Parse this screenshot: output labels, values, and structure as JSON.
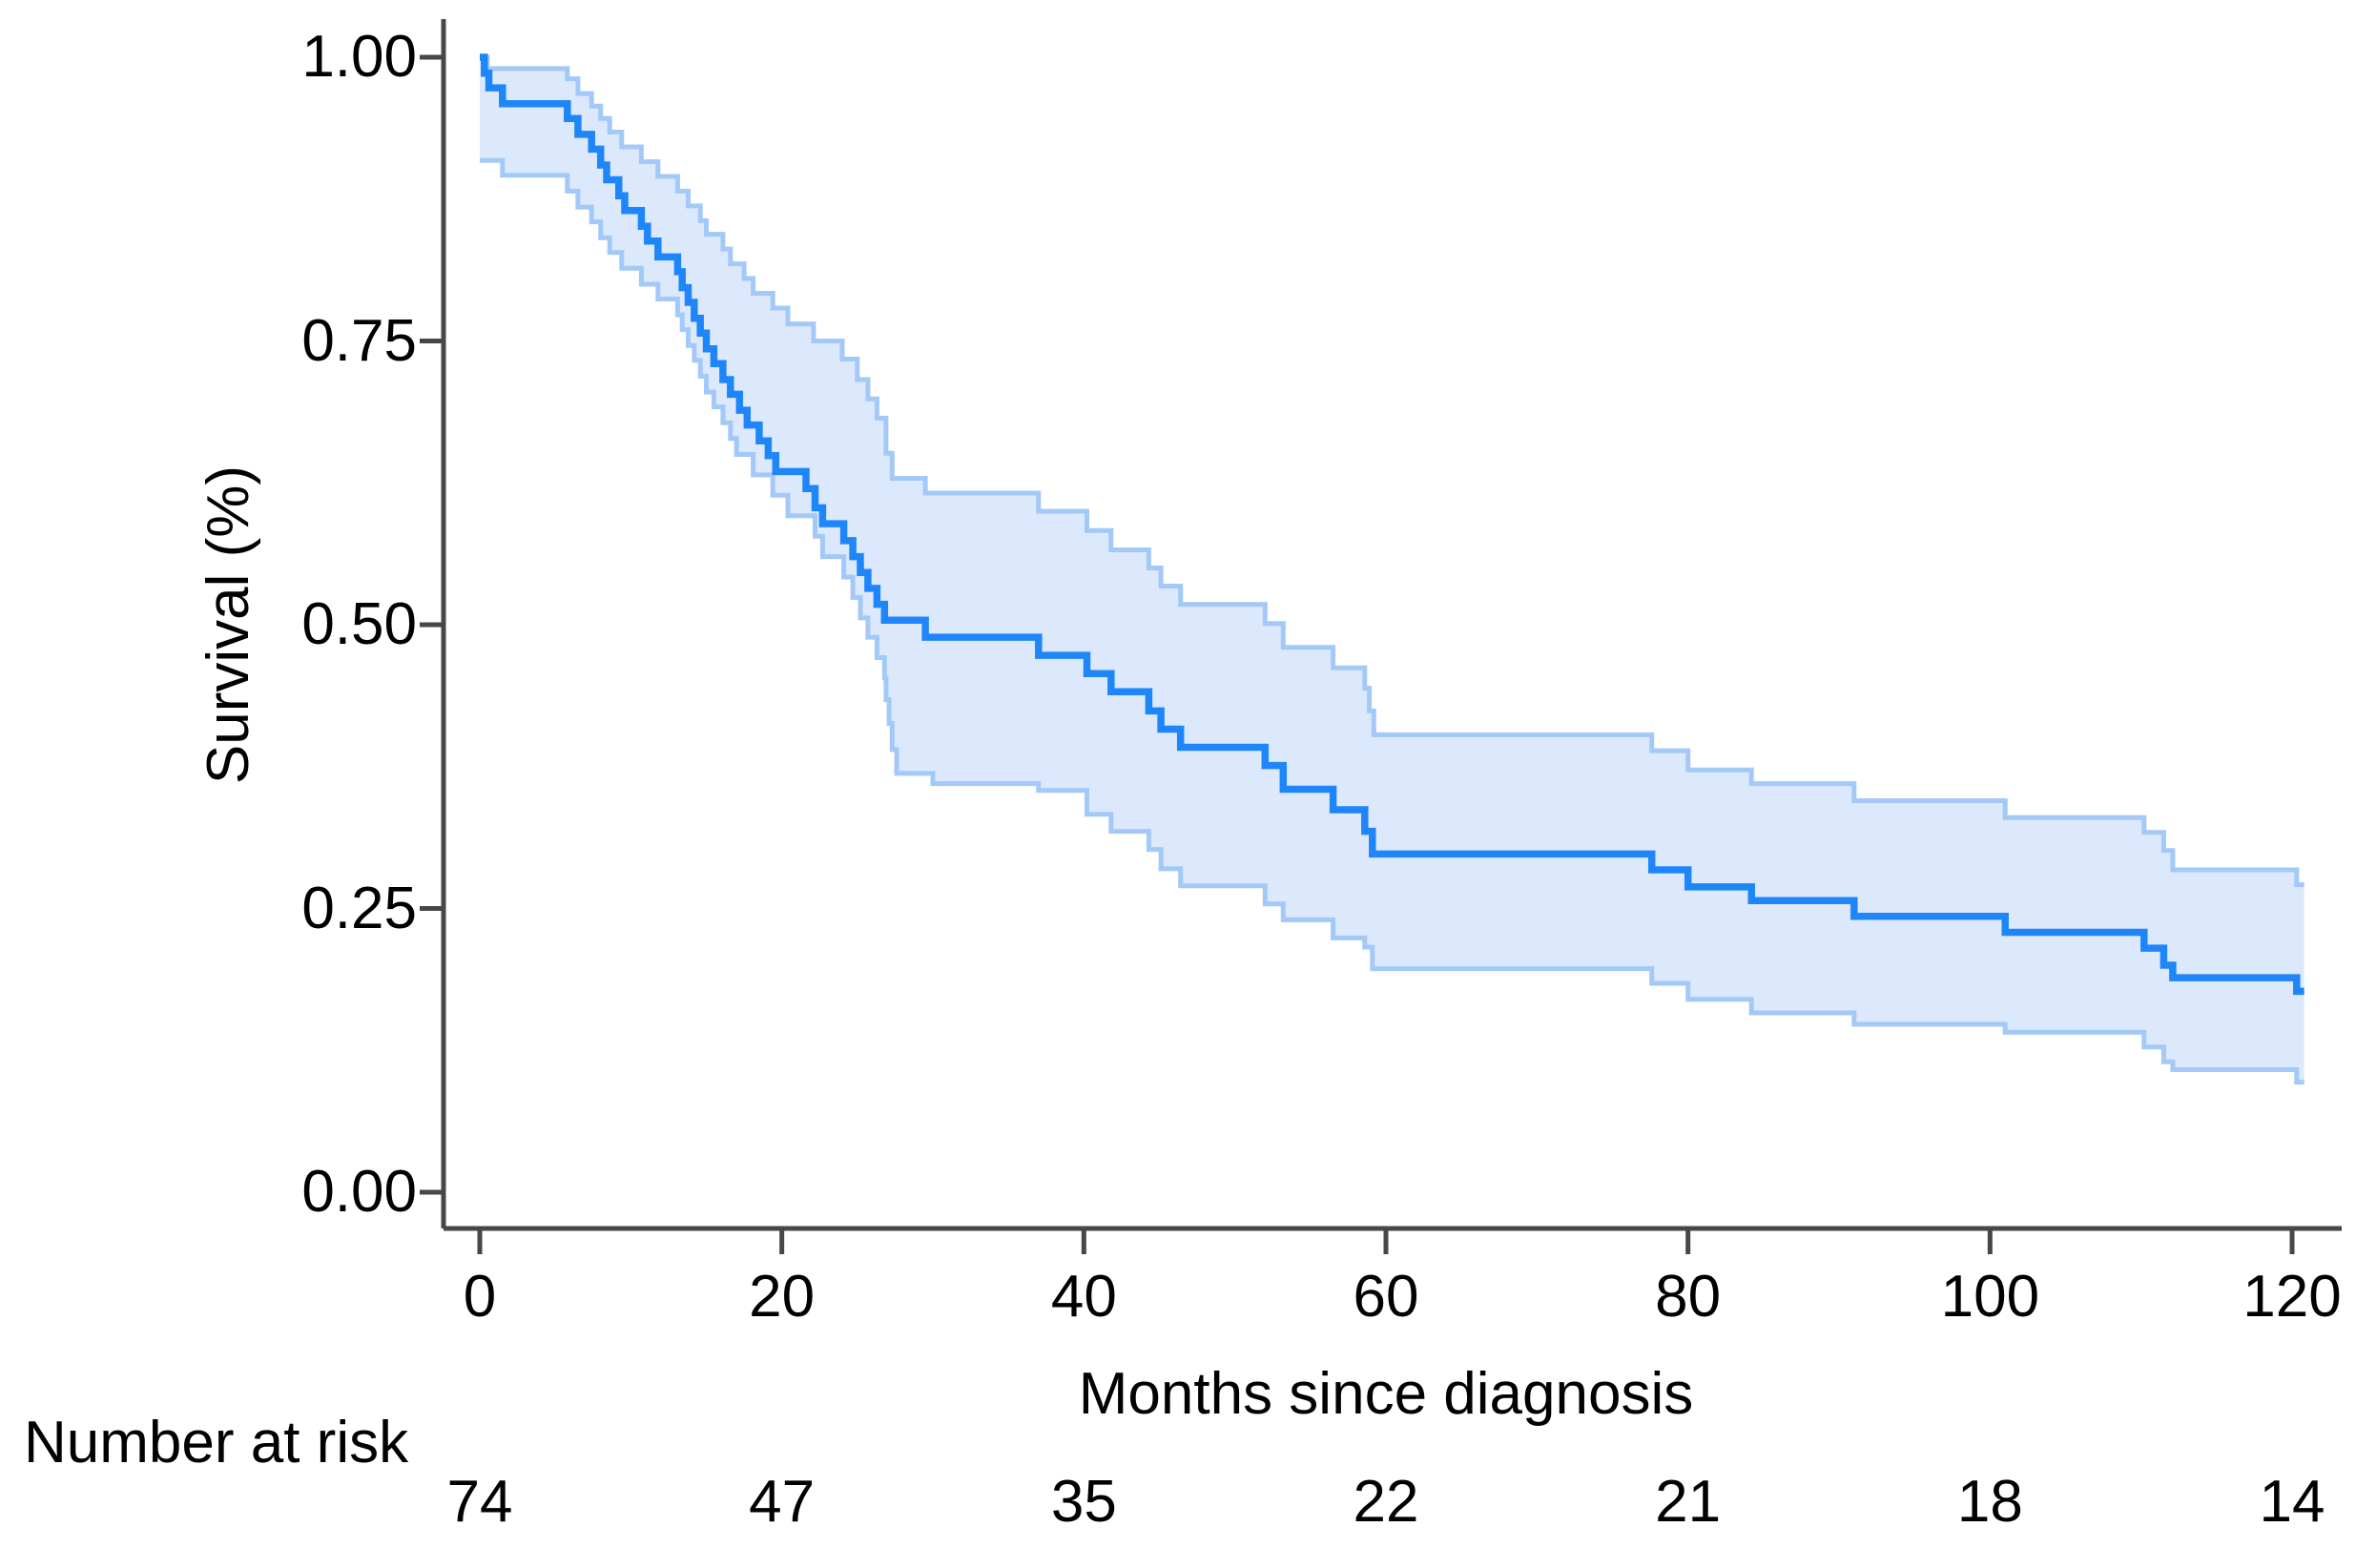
{
  "figure": {
    "background": "#ffffff",
    "axis_color": "#474747",
    "text_color": "#000000"
  },
  "chart_data": {
    "type": "line",
    "subtype": "kaplan-meier-step",
    "title": "",
    "xlabel": "Months since diagnosis",
    "ylabel": "Survival (%)",
    "xlim": [
      0,
      120
    ],
    "ylim": [
      0,
      1
    ],
    "grid": "off",
    "legend": "none",
    "xticks": [
      {
        "value": 0,
        "label": "0"
      },
      {
        "value": 20,
        "label": "20"
      },
      {
        "value": 40,
        "label": "40"
      },
      {
        "value": 60,
        "label": "60"
      },
      {
        "value": 80,
        "label": "80"
      },
      {
        "value": 100,
        "label": "100"
      },
      {
        "value": 120,
        "label": "120"
      }
    ],
    "yticks": [
      {
        "value": 0.0,
        "label": "0.00"
      },
      {
        "value": 0.25,
        "label": "0.25"
      },
      {
        "value": 0.5,
        "label": "0.50"
      },
      {
        "value": 0.75,
        "label": "0.75"
      },
      {
        "value": 1.0,
        "label": "1.00"
      }
    ],
    "t_end": 120.8,
    "band_fill": "#dce9fc",
    "series": [
      {
        "name": "survival",
        "color": "#1f86fa",
        "width": 7.5,
        "points": [
          [
            0,
            1.0
          ],
          [
            0.3,
            0.986
          ],
          [
            0.6,
            0.973
          ],
          [
            1.5,
            0.959
          ],
          [
            5.8,
            0.946
          ],
          [
            6.5,
            0.932
          ],
          [
            7.4,
            0.919
          ],
          [
            8.0,
            0.905
          ],
          [
            8.4,
            0.892
          ],
          [
            9.2,
            0.878
          ],
          [
            9.6,
            0.865
          ],
          [
            10.7,
            0.851
          ],
          [
            11.1,
            0.838
          ],
          [
            11.8,
            0.824
          ],
          [
            13.1,
            0.811
          ],
          [
            13.4,
            0.797
          ],
          [
            13.8,
            0.784
          ],
          [
            14.2,
            0.77
          ],
          [
            14.6,
            0.757
          ],
          [
            15.0,
            0.743
          ],
          [
            15.5,
            0.73
          ],
          [
            16.1,
            0.716
          ],
          [
            16.6,
            0.703
          ],
          [
            17.2,
            0.689
          ],
          [
            17.7,
            0.676
          ],
          [
            18.5,
            0.662
          ],
          [
            19.1,
            0.649
          ],
          [
            19.6,
            0.635
          ],
          [
            21.6,
            0.62
          ],
          [
            22.2,
            0.603
          ],
          [
            22.7,
            0.589
          ],
          [
            24.1,
            0.574
          ],
          [
            24.7,
            0.56
          ],
          [
            25.2,
            0.546
          ],
          [
            25.7,
            0.532
          ],
          [
            26.3,
            0.518
          ],
          [
            26.8,
            0.504
          ],
          [
            29.5,
            0.489
          ],
          [
            37.0,
            0.473
          ],
          [
            40.2,
            0.457
          ],
          [
            41.8,
            0.441
          ],
          [
            44.3,
            0.424
          ],
          [
            45.1,
            0.408
          ],
          [
            46.4,
            0.392
          ],
          [
            52.0,
            0.376
          ],
          [
            53.2,
            0.355
          ],
          [
            56.5,
            0.337
          ],
          [
            58.6,
            0.318
          ],
          [
            59.1,
            0.298
          ],
          [
            77.6,
            0.284
          ],
          [
            80.0,
            0.269
          ],
          [
            84.2,
            0.257
          ],
          [
            91.0,
            0.243
          ],
          [
            101.0,
            0.229
          ],
          [
            110.2,
            0.215
          ],
          [
            111.5,
            0.2
          ],
          [
            112.1,
            0.189
          ],
          [
            120.3,
            0.177
          ]
        ]
      },
      {
        "name": "ci_upper",
        "color": "#a3c9f8",
        "width": 5,
        "points": [
          [
            0,
            1.0
          ],
          [
            0.5,
            0.99
          ],
          [
            5.8,
            0.981
          ],
          [
            6.5,
            0.968
          ],
          [
            7.4,
            0.957
          ],
          [
            8.0,
            0.946
          ],
          [
            8.6,
            0.934
          ],
          [
            9.4,
            0.921
          ],
          [
            10.7,
            0.908
          ],
          [
            11.8,
            0.895
          ],
          [
            13.1,
            0.882
          ],
          [
            13.8,
            0.869
          ],
          [
            14.6,
            0.856
          ],
          [
            15.0,
            0.844
          ],
          [
            16.1,
            0.831
          ],
          [
            16.6,
            0.818
          ],
          [
            17.5,
            0.805
          ],
          [
            18.1,
            0.792
          ],
          [
            19.4,
            0.779
          ],
          [
            20.4,
            0.765
          ],
          [
            22.1,
            0.75
          ],
          [
            24.0,
            0.734
          ],
          [
            25.0,
            0.716
          ],
          [
            25.7,
            0.699
          ],
          [
            26.3,
            0.682
          ],
          [
            26.9,
            0.651
          ],
          [
            27.3,
            0.629
          ],
          [
            29.5,
            0.616
          ],
          [
            37.0,
            0.6
          ],
          [
            40.2,
            0.583
          ],
          [
            41.8,
            0.566
          ],
          [
            44.3,
            0.55
          ],
          [
            45.1,
            0.534
          ],
          [
            46.4,
            0.518
          ],
          [
            52.0,
            0.501
          ],
          [
            53.2,
            0.48
          ],
          [
            56.5,
            0.462
          ],
          [
            58.6,
            0.444
          ],
          [
            58.9,
            0.424
          ],
          [
            59.2,
            0.403
          ],
          [
            77.6,
            0.389
          ],
          [
            80.0,
            0.372
          ],
          [
            84.2,
            0.36
          ],
          [
            91.0,
            0.345
          ],
          [
            101.0,
            0.33
          ],
          [
            110.2,
            0.317
          ],
          [
            111.5,
            0.301
          ],
          [
            112.1,
            0.284
          ],
          [
            120.3,
            0.271
          ]
        ]
      },
      {
        "name": "ci_lower",
        "color": "#a3c9f8",
        "width": 5,
        "points": [
          [
            0,
            0.909
          ],
          [
            1.5,
            0.896
          ],
          [
            5.8,
            0.882
          ],
          [
            6.5,
            0.868
          ],
          [
            7.4,
            0.855
          ],
          [
            8.0,
            0.841
          ],
          [
            8.6,
            0.828
          ],
          [
            9.4,
            0.814
          ],
          [
            10.7,
            0.8
          ],
          [
            11.8,
            0.787
          ],
          [
            13.1,
            0.773
          ],
          [
            13.4,
            0.76
          ],
          [
            13.8,
            0.746
          ],
          [
            14.2,
            0.733
          ],
          [
            14.6,
            0.719
          ],
          [
            15.0,
            0.705
          ],
          [
            15.5,
            0.692
          ],
          [
            16.1,
            0.678
          ],
          [
            16.6,
            0.664
          ],
          [
            17.0,
            0.65
          ],
          [
            18.1,
            0.632
          ],
          [
            19.4,
            0.614
          ],
          [
            20.4,
            0.596
          ],
          [
            22.2,
            0.578
          ],
          [
            22.7,
            0.56
          ],
          [
            24.1,
            0.542
          ],
          [
            24.7,
            0.524
          ],
          [
            25.2,
            0.506
          ],
          [
            25.7,
            0.489
          ],
          [
            26.3,
            0.471
          ],
          [
            26.8,
            0.453
          ],
          [
            26.9,
            0.434
          ],
          [
            27.1,
            0.413
          ],
          [
            27.3,
            0.39
          ],
          [
            27.6,
            0.369
          ],
          [
            30.0,
            0.36
          ],
          [
            37.0,
            0.354
          ],
          [
            40.2,
            0.333
          ],
          [
            41.8,
            0.318
          ],
          [
            44.3,
            0.302
          ],
          [
            45.1,
            0.285
          ],
          [
            46.4,
            0.27
          ],
          [
            52.0,
            0.254
          ],
          [
            53.2,
            0.24
          ],
          [
            56.5,
            0.224
          ],
          [
            58.6,
            0.216
          ],
          [
            59.1,
            0.197
          ],
          [
            77.6,
            0.184
          ],
          [
            80.0,
            0.17
          ],
          [
            84.2,
            0.158
          ],
          [
            91.0,
            0.148
          ],
          [
            101.0,
            0.141
          ],
          [
            110.2,
            0.128
          ],
          [
            111.5,
            0.115
          ],
          [
            112.1,
            0.108
          ],
          [
            120.3,
            0.097
          ]
        ]
      }
    ],
    "number_at_risk": {
      "label": "Number at risk",
      "times": [
        0,
        20,
        40,
        60,
        80,
        100,
        120
      ],
      "counts": [
        74,
        47,
        35,
        22,
        21,
        18,
        14
      ]
    }
  }
}
